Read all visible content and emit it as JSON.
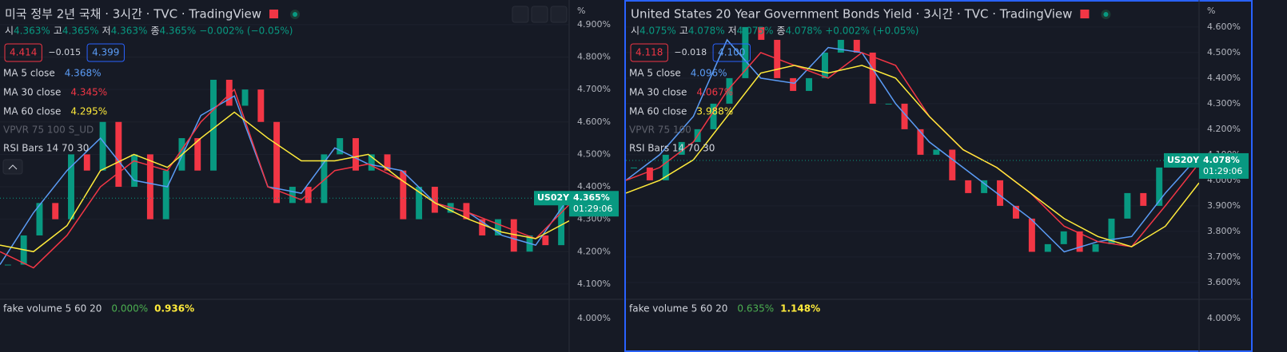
{
  "panels": [
    {
      "title": "미국 정부 2년 국채 · 3시간 · TVC · TradingView",
      "ohlc": [
        {
          "label": "시",
          "value": "4.363%"
        },
        {
          "label": "고",
          "value": "4.365%"
        },
        {
          "label": "저",
          "value": "4.363%"
        },
        {
          "label": "종",
          "value": "4.365%"
        }
      ],
      "change": "−0.002% (−0.05%)",
      "bid": "4.414",
      "spread": "−0.015",
      "ask": "4.399",
      "indicators": [
        {
          "name": "MA 5 close",
          "value": "4.368%",
          "color": "#5b9cf6"
        },
        {
          "name": "MA 30 close",
          "value": "4.345%",
          "color": "#f23645"
        },
        {
          "name": "MA 60 close",
          "value": "4.295%",
          "color": "#ffeb3b"
        }
      ],
      "vpvr": "VPVR 75 100 S_UD",
      "rsi": "RSI Bars 14 70 30",
      "volume": {
        "name": "fake volume 5 60 20",
        "values": [
          {
            "value": "0.000%",
            "color": "#4caf50"
          },
          {
            "value": "0.936%",
            "color": "#ffeb3b"
          }
        ],
        "tick": "4.000%"
      },
      "symbol": "US02Y",
      "last": {
        "value": 4.365,
        "label": "4.365%"
      },
      "countdown": "01:29:06",
      "unit": "%",
      "chart": {
        "type": "candlestick",
        "ylim": [
          4.053,
          4.976
        ],
        "yticks": [
          {
            "value": 4.1,
            "label": "4.100%"
          },
          {
            "value": 4.2,
            "label": "4.200%"
          },
          {
            "value": 4.3,
            "label": "4.300%"
          },
          {
            "value": 4.4,
            "label": "4.400%"
          },
          {
            "value": 4.5,
            "label": "4.500%"
          },
          {
            "value": 4.6,
            "label": "4.600%"
          },
          {
            "value": 4.7,
            "label": "4.700%"
          },
          {
            "value": 4.8,
            "label": "4.800%"
          },
          {
            "value": 4.9,
            "label": "4.900%"
          }
        ],
        "close": [
          4.16,
          4.25,
          4.35,
          4.3,
          4.5,
          4.45,
          4.6,
          4.4,
          4.5,
          4.3,
          4.45,
          4.55,
          4.45,
          4.73,
          4.65,
          4.7,
          4.6,
          4.35,
          4.4,
          4.35,
          4.5,
          4.55,
          4.45,
          4.5,
          4.45,
          4.3,
          4.4,
          4.32,
          4.35,
          4.3,
          4.25,
          4.3,
          4.2,
          4.25,
          4.22,
          4.365
        ],
        "ma": [
          {
            "color": "#5b9cf6",
            "values": [
              4.16,
              4.32,
              4.45,
              4.55,
              4.42,
              4.4,
              4.62,
              4.68,
              4.4,
              4.38,
              4.52,
              4.47,
              4.45,
              4.35,
              4.32,
              4.25,
              4.22,
              4.368
            ]
          },
          {
            "color": "#f23645",
            "values": [
              4.2,
              4.15,
              4.25,
              4.4,
              4.48,
              4.45,
              4.6,
              4.7,
              4.4,
              4.36,
              4.45,
              4.47,
              4.42,
              4.35,
              4.32,
              4.28,
              4.24,
              4.345
            ]
          },
          {
            "color": "#ffeb3b",
            "values": [
              4.22,
              4.2,
              4.28,
              4.45,
              4.5,
              4.46,
              4.55,
              4.63,
              4.55,
              4.48,
              4.48,
              4.5,
              4.42,
              4.35,
              4.3,
              4.26,
              4.24,
              4.295
            ]
          }
        ]
      }
    },
    {
      "title": "United States 20 Year Government Bonds Yield · 3시간 · TVC · TradingView",
      "ohlc": [
        {
          "label": "시",
          "value": "4.075%"
        },
        {
          "label": "고",
          "value": "4.078%"
        },
        {
          "label": "저",
          "value": "4.075%"
        },
        {
          "label": "종",
          "value": "4.078%"
        }
      ],
      "change": "+0.002% (+0.05%)",
      "bid": "4.118",
      "spread": "−0.018",
      "ask": "4.100",
      "indicators": [
        {
          "name": "MA 5 close",
          "value": "4.096%",
          "color": "#5b9cf6"
        },
        {
          "name": "MA 30 close",
          "value": "4.067%",
          "color": "#f23645"
        },
        {
          "name": "MA 60 close",
          "value": "3.988%",
          "color": "#ffeb3b"
        }
      ],
      "vpvr": "VPVR 75 100",
      "rsi": "RSI Bars 14 70 30",
      "volume": {
        "name": "fake volume 5 60 20",
        "values": [
          {
            "value": "0.635%",
            "color": "#4caf50"
          },
          {
            "value": "1.148%",
            "color": "#ffeb3b"
          }
        ],
        "tick": "4.000%"
      },
      "symbol": "US20Y",
      "last": {
        "value": 4.078,
        "label": "4.078%"
      },
      "countdown": "01:29:06",
      "unit": "%",
      "chart": {
        "type": "candlestick",
        "ylim": [
          3.534,
          4.706
        ],
        "yticks": [
          {
            "value": 3.6,
            "label": "3.600%"
          },
          {
            "value": 3.7,
            "label": "3.700%"
          },
          {
            "value": 3.8,
            "label": "3.800%"
          },
          {
            "value": 3.9,
            "label": "3.900%"
          },
          {
            "value": 4.0,
            "label": "4.000%"
          },
          {
            "value": 4.1,
            "label": "4.100%"
          },
          {
            "value": 4.2,
            "label": "4.200%"
          },
          {
            "value": 4.3,
            "label": "4.300%"
          },
          {
            "value": 4.4,
            "label": "4.400%"
          },
          {
            "value": 4.5,
            "label": "4.500%"
          },
          {
            "value": 4.6,
            "label": "4.600%"
          }
        ],
        "close": [
          4.05,
          4.0,
          4.1,
          4.15,
          4.2,
          4.3,
          4.4,
          4.6,
          4.55,
          4.4,
          4.35,
          4.4,
          4.5,
          4.55,
          4.5,
          4.3,
          4.3,
          4.2,
          4.1,
          4.12,
          4.0,
          3.95,
          4.0,
          3.9,
          3.85,
          3.72,
          3.75,
          3.8,
          3.72,
          3.75,
          3.85,
          3.95,
          3.9,
          4.05,
          4.1,
          4.078
        ],
        "ma": [
          {
            "color": "#5b9cf6",
            "values": [
              4.0,
              4.1,
              4.25,
              4.55,
              4.4,
              4.38,
              4.52,
              4.5,
              4.3,
              4.15,
              4.05,
              3.95,
              3.85,
              3.72,
              3.76,
              3.78,
              3.95,
              4.096
            ]
          },
          {
            "color": "#f23645",
            "values": [
              4.0,
              4.05,
              4.15,
              4.35,
              4.5,
              4.45,
              4.4,
              4.5,
              4.45,
              4.25,
              4.12,
              4.05,
              3.95,
              3.82,
              3.76,
              3.74,
              3.9,
              4.067
            ]
          },
          {
            "color": "#ffeb3b",
            "values": [
              3.95,
              4.0,
              4.08,
              4.25,
              4.42,
              4.45,
              4.42,
              4.45,
              4.4,
              4.25,
              4.12,
              4.05,
              3.95,
              3.85,
              3.78,
              3.74,
              3.82,
              3.99
            ]
          }
        ]
      }
    }
  ]
}
